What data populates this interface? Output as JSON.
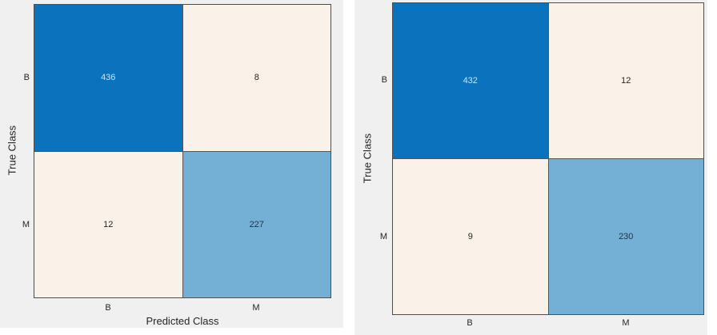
{
  "colors": {
    "figure_background": "#f0f0f0",
    "page_background": "#ffffff",
    "grid_line": "#4d4d4d",
    "axis_text": "#262626",
    "diagonal_dark_blue": "#0b72bd",
    "diagonal_light_blue": "#74b0d6",
    "off_diagonal_cream": "#faf1e8",
    "value_text_on_dark": "#cfe4f4",
    "value_text_on_light_blue": "#1c3349"
  },
  "chart_data": [
    {
      "type": "heatmap",
      "title": "",
      "xlabel": "Predicted Class",
      "ylabel": "True Class",
      "x_categories": [
        "B",
        "M"
      ],
      "y_categories": [
        "B",
        "M"
      ],
      "values": [
        [
          436,
          8
        ],
        [
          12,
          227
        ]
      ],
      "legend": "none",
      "grid": "cell borders only"
    },
    {
      "type": "heatmap",
      "title": "",
      "xlabel": "",
      "ylabel": "True Class",
      "x_categories": [
        "B",
        "M"
      ],
      "y_categories": [
        "B",
        "M"
      ],
      "values": [
        [
          432,
          12
        ],
        [
          9,
          230
        ]
      ],
      "legend": "none",
      "grid": "cell borders only"
    }
  ],
  "cell_styles": [
    [
      "background:#0b72bd;color:#cfe4f4",
      "background:#faf1e8;color:#262626",
      "background:#faf1e8;color:#262626",
      "background:#74b0d6;color:#1c3349"
    ],
    [
      "background:#0b72bd;color:#cfe4f4",
      "background:#faf1e8;color:#262626",
      "background:#faf1e8;color:#262626",
      "background:#74b0d6;color:#1c3349"
    ]
  ]
}
